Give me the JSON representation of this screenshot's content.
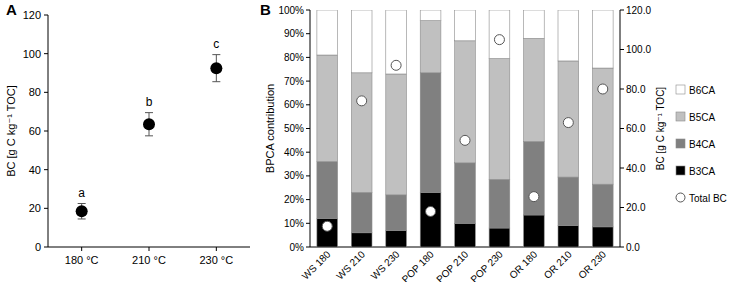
{
  "chart_data": [
    {
      "type": "scatter",
      "title": "A",
      "y_label": "BC [g C kg⁻¹ TOC]",
      "categories": [
        "180 °C",
        "210 °C",
        "230 °C"
      ],
      "values": [
        18.5,
        63.5,
        92.5
      ],
      "errors": [
        4,
        6,
        7
      ],
      "annotations": [
        "a",
        "b",
        "c"
      ],
      "color": "#000000",
      "marker": "circle",
      "ylim": [
        0,
        120
      ],
      "yticks": [
        0,
        20,
        40,
        60,
        80,
        100,
        120
      ],
      "grid": false
    },
    {
      "type": "bar",
      "title": "B",
      "stacked": true,
      "legend": "right",
      "grid": false,
      "y_label": "BPCA contribution",
      "y2_label": "BC [g C kg⁻¹ TOC]",
      "categories": [
        "WS 180",
        "WS 210",
        "WS 230",
        "POP 180",
        "POP 210",
        "POP 230",
        "OR 180",
        "OR 210",
        "OR 230"
      ],
      "series": [
        {
          "name": "B3CA",
          "color": "#000000",
          "values": [
            12,
            6,
            7,
            23,
            10,
            8,
            13.5,
            9,
            8.5
          ]
        },
        {
          "name": "B4CA",
          "color": "#808080",
          "values": [
            24,
            17,
            15,
            50.5,
            25.5,
            20.5,
            31,
            20.5,
            18
          ]
        },
        {
          "name": "B5CA",
          "color": "#c0c0c0",
          "values": [
            45,
            50.5,
            51,
            22,
            51.5,
            51,
            43.5,
            49,
            49
          ]
        },
        {
          "name": "B6CA",
          "color": "#ffffff",
          "values": [
            19,
            26.5,
            27,
            4.5,
            13,
            20.5,
            12,
            21.5,
            24.5
          ]
        },
        {
          "name": "Total BC",
          "type": "scatter",
          "axis": "y2",
          "marker": "circle",
          "color": "#ffffff",
          "values": [
            10.5,
            74,
            92,
            18,
            54,
            105,
            25.5,
            63,
            80
          ]
        }
      ],
      "ylim": [
        0,
        100
      ],
      "yticks": [
        {
          "value": 0,
          "label": "0%"
        },
        {
          "value": 10,
          "label": "10%"
        },
        {
          "value": 20,
          "label": "20%"
        },
        {
          "value": 30,
          "label": "30%"
        },
        {
          "value": 40,
          "label": "40%"
        },
        {
          "value": 50,
          "label": "50%"
        },
        {
          "value": 60,
          "label": "60%"
        },
        {
          "value": 70,
          "label": "70%"
        },
        {
          "value": 80,
          "label": "80%"
        },
        {
          "value": 90,
          "label": "90%"
        },
        {
          "value": 100,
          "label": "100%"
        }
      ],
      "y2lim": [
        0,
        120
      ],
      "y2ticks": [
        {
          "value": 0,
          "label": "0.0"
        },
        {
          "value": 20,
          "label": "20.0"
        },
        {
          "value": 40,
          "label": "40.0"
        },
        {
          "value": 60,
          "label": "60.0"
        },
        {
          "value": 80,
          "label": "80.0"
        },
        {
          "value": 100,
          "label": "100.0"
        },
        {
          "value": 120,
          "label": "120.0"
        }
      ]
    }
  ]
}
